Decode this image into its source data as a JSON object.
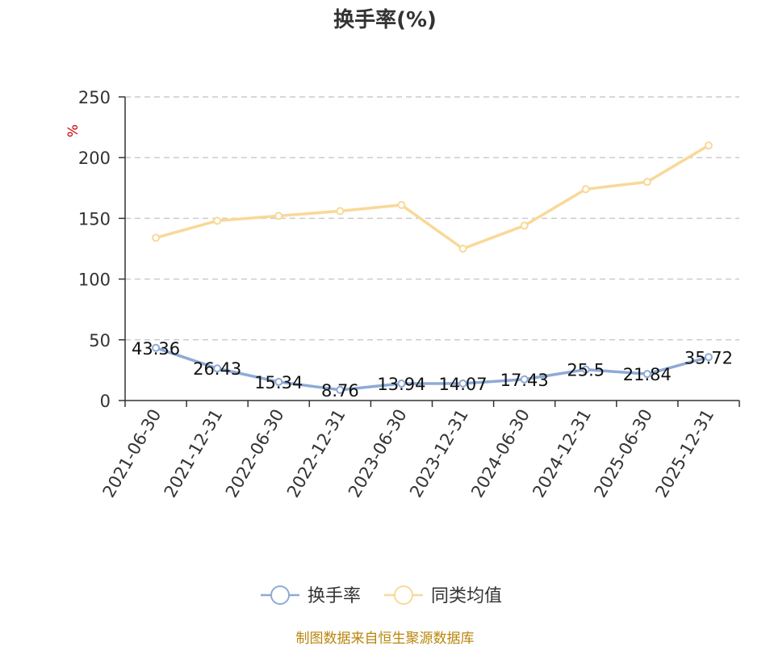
{
  "chart_data": {
    "type": "line",
    "title": "换手率(%)",
    "ylabel": "%",
    "ylim": [
      0,
      250
    ],
    "yticks": [
      0,
      50,
      100,
      150,
      200,
      250
    ],
    "grid": true,
    "legend": "bottom-center",
    "categories": [
      "2021-06-30",
      "2021-12-31",
      "2022-06-30",
      "2022-12-31",
      "2023-06-30",
      "2023-12-31",
      "2024-06-30",
      "2024-12-31",
      "2025-06-30",
      "2025-12-31"
    ],
    "series": [
      {
        "name": "换手率",
        "color": "#8eaad6",
        "values": [
          43.36,
          26.43,
          15.34,
          8.76,
          13.94,
          14.07,
          17.43,
          25.5,
          21.84,
          35.72
        ],
        "labels": [
          "43.36",
          "26.43",
          "15.34",
          "8.76",
          "13.94",
          "14.07",
          "17.43",
          "25.5",
          "21.84",
          "35.72"
        ]
      },
      {
        "name": "同类均值",
        "color": "#f9d898",
        "values": [
          134,
          148,
          152,
          156,
          161,
          125,
          144,
          174,
          180,
          210
        ]
      }
    ]
  },
  "source": "制图数据来自恒生聚源数据库"
}
